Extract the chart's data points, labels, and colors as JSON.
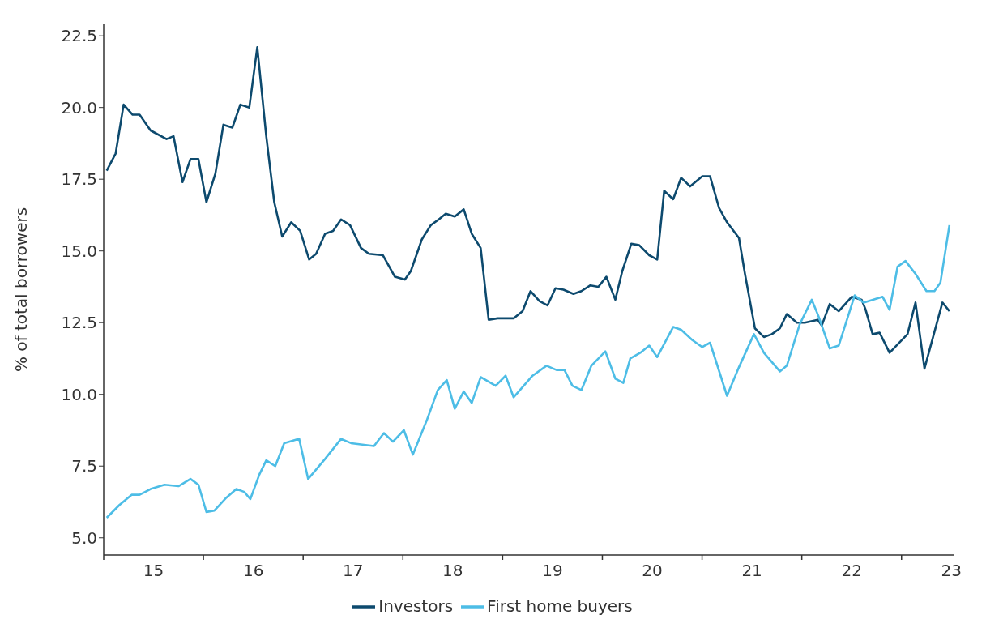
{
  "chart_data": {
    "type": "line",
    "ylabel": "% of total borrowers",
    "xlim": [
      14.5,
      23.03
    ],
    "ylim": [
      4.4,
      22.9
    ],
    "xticks": [
      {
        "value": 14.5,
        "label": null
      },
      15,
      {
        "value": 15.5,
        "label": null
      },
      16,
      {
        "value": 16.5,
        "label": null
      },
      17,
      {
        "value": 17.5,
        "label": null
      },
      18,
      {
        "value": 18.5,
        "label": null
      },
      19,
      {
        "value": 19.5,
        "label": null
      },
      20,
      {
        "value": 20.5,
        "label": null
      },
      21,
      {
        "value": 21.5,
        "label": null
      },
      22,
      {
        "value": 22.5,
        "label": null
      },
      23
    ],
    "yticks": [
      {
        "value": 5,
        "label": "5.0"
      },
      {
        "value": 7.5,
        "label": "7.5"
      },
      {
        "value": 10,
        "label": "10.0"
      },
      {
        "value": 12.5,
        "label": "12.5"
      },
      {
        "value": 15,
        "label": "15.0"
      },
      {
        "value": 17.5,
        "label": "17.5"
      },
      {
        "value": 20,
        "label": "20.0"
      },
      {
        "value": 22.5,
        "label": "22.5"
      }
    ],
    "grid": false,
    "legend": "bottom",
    "marker": "none",
    "line_style": "solid",
    "series": [
      {
        "name": "Investors",
        "color": "#0d4a6e",
        "x": [
          14.53,
          14.62,
          14.7,
          14.79,
          14.86,
          14.97,
          15.13,
          15.2,
          15.29,
          15.37,
          15.45,
          15.53,
          15.62,
          15.7,
          15.79,
          15.87,
          15.96,
          16.04,
          16.13,
          16.21,
          16.29,
          16.38,
          16.47,
          16.56,
          16.63,
          16.72,
          16.8,
          16.88,
          16.97,
          17.08,
          17.16,
          17.3,
          17.42,
          17.52,
          17.58,
          17.69,
          17.78,
          17.86,
          17.93,
          18.02,
          18.11,
          18.19,
          18.28,
          18.36,
          18.45,
          18.61,
          18.7,
          18.78,
          18.87,
          18.95,
          19.03,
          19.11,
          19.21,
          19.29,
          19.38,
          19.46,
          19.54,
          19.63,
          19.7,
          19.79,
          19.87,
          19.97,
          20.05,
          20.12,
          20.21,
          20.29,
          20.38,
          20.5,
          20.58,
          20.67,
          20.75,
          20.87,
          20.93,
          21.03,
          21.12,
          21.2,
          21.28,
          21.35,
          21.45,
          21.53,
          21.66,
          21.7,
          21.78,
          21.87,
          22,
          22.1,
          22.14,
          22.21,
          22.28,
          22.38,
          22.56,
          22.64,
          22.73,
          22.91,
          22.98
        ],
        "values": [
          17.8,
          18.4,
          20.1,
          19.75,
          19.75,
          19.2,
          18.9,
          19.0,
          17.4,
          18.2,
          18.2,
          16.7,
          17.7,
          19.4,
          19.3,
          20.1,
          20.0,
          22.1,
          19.0,
          16.7,
          15.5,
          16.0,
          15.7,
          14.7,
          14.9,
          15.6,
          15.7,
          16.1,
          15.9,
          15.1,
          14.9,
          14.85,
          14.1,
          14.0,
          14.3,
          15.4,
          15.9,
          16.1,
          16.3,
          16.2,
          16.45,
          15.6,
          15.1,
          12.6,
          12.65,
          12.65,
          12.9,
          13.6,
          13.25,
          13.1,
          13.7,
          13.65,
          13.5,
          13.6,
          13.8,
          13.75,
          14.1,
          13.3,
          14.3,
          15.25,
          15.2,
          14.85,
          14.7,
          17.1,
          16.8,
          17.55,
          17.25,
          17.6,
          17.6,
          16.5,
          16.0,
          15.45,
          14.2,
          12.3,
          12.0,
          12.1,
          12.3,
          12.8,
          12.5,
          12.5,
          12.6,
          12.4,
          13.15,
          12.9,
          13.4,
          13.3,
          12.95,
          12.1,
          12.15,
          11.45,
          12.1,
          13.2,
          10.9,
          13.2,
          12.9
        ]
      },
      {
        "name": "First home buyers",
        "color": "#4dbde6",
        "x": [
          14.53,
          14.66,
          14.78,
          14.86,
          14.97,
          15.11,
          15.25,
          15.37,
          15.45,
          15.53,
          15.61,
          15.73,
          15.83,
          15.91,
          15.97,
          16.06,
          16.13,
          16.22,
          16.31,
          16.46,
          16.55,
          16.72,
          16.88,
          16.98,
          17.21,
          17.31,
          17.4,
          17.51,
          17.6,
          17.74,
          17.85,
          17.94,
          18.02,
          18.11,
          18.19,
          18.28,
          18.43,
          18.53,
          18.61,
          18.8,
          18.94,
          19.04,
          19.12,
          19.2,
          19.29,
          19.39,
          19.53,
          19.63,
          19.71,
          19.78,
          19.88,
          19.97,
          20.05,
          20.21,
          20.29,
          20.4,
          20.5,
          20.58,
          20.75,
          20.87,
          21.02,
          21.12,
          21.28,
          21.35,
          21.48,
          21.6,
          21.67,
          21.78,
          21.87,
          22.03,
          22.12,
          22.31,
          22.38,
          22.46,
          22.54,
          22.64,
          22.75,
          22.83,
          22.89,
          22.98
        ],
        "values": [
          5.7,
          6.15,
          6.5,
          6.5,
          6.7,
          6.85,
          6.8,
          7.05,
          6.85,
          5.9,
          5.95,
          6.4,
          6.7,
          6.6,
          6.35,
          7.2,
          7.7,
          7.5,
          8.3,
          8.45,
          7.05,
          7.75,
          8.45,
          8.3,
          8.2,
          8.65,
          8.35,
          8.75,
          7.9,
          9.1,
          10.15,
          10.5,
          9.5,
          10.1,
          9.7,
          10.6,
          10.3,
          10.65,
          9.9,
          10.65,
          11.0,
          10.85,
          10.85,
          10.3,
          10.15,
          11.0,
          11.5,
          10.55,
          10.4,
          11.25,
          11.45,
          11.7,
          11.3,
          12.35,
          12.25,
          11.9,
          11.65,
          11.8,
          9.95,
          10.95,
          12.1,
          11.45,
          10.8,
          11.0,
          12.45,
          13.3,
          12.7,
          11.6,
          11.7,
          13.45,
          13.2,
          13.4,
          12.95,
          14.45,
          14.65,
          14.2,
          13.6,
          13.6,
          13.9,
          15.9
        ]
      }
    ]
  }
}
